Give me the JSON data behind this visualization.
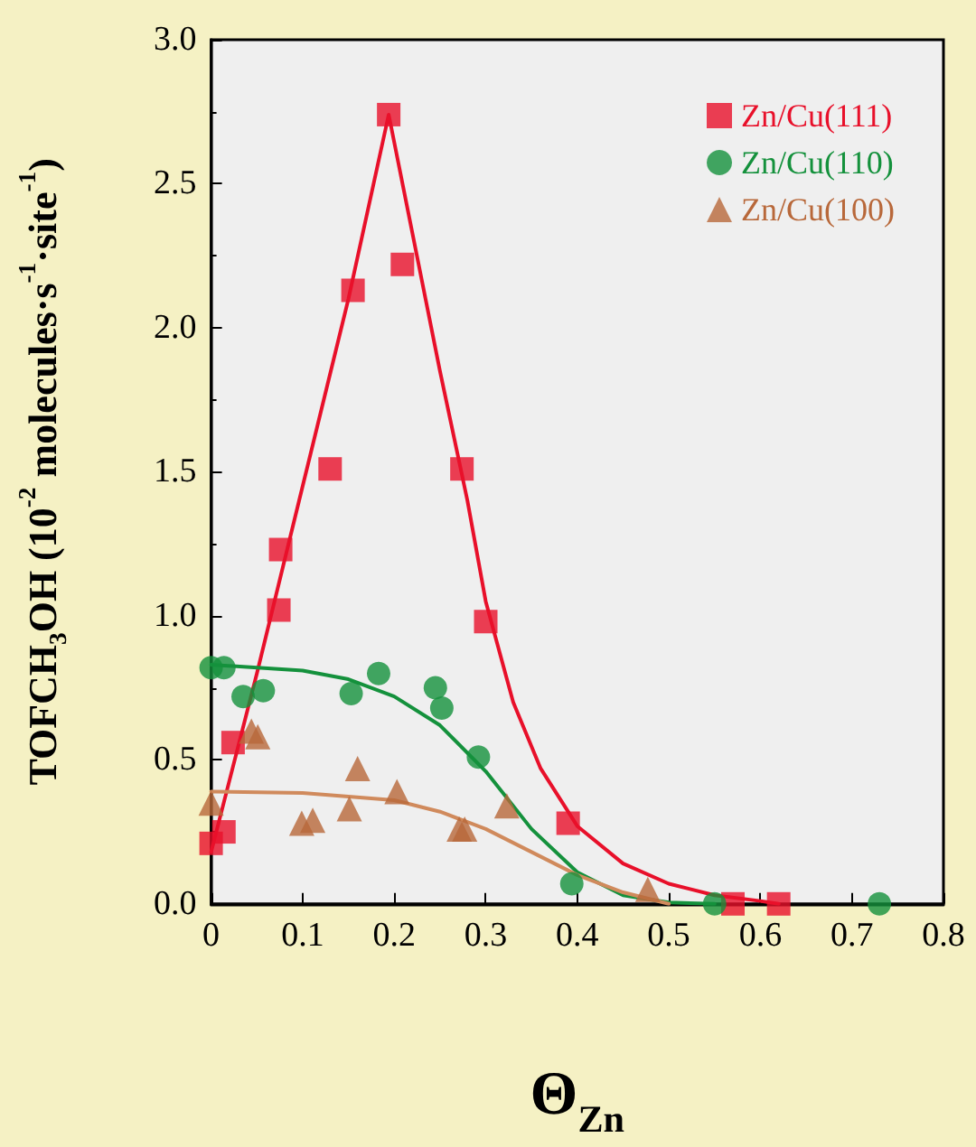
{
  "chart_data": {
    "type": "scatter",
    "xlabel": "Θ$_{Zn}$",
    "ylabel": "TOFCH$_{3}$OH (10$^{-2}$ molecules·s$^{-1}$·site$^{-1}$)",
    "xlim": [
      0,
      0.8
    ],
    "xticks": [
      0,
      0.1,
      0.2,
      0.3,
      0.4,
      0.5,
      0.6,
      0.7,
      0.8
    ],
    "ylim": [
      0,
      3
    ],
    "yticks": [
      {
        "value": 0,
        "label": "0.0"
      },
      {
        "value": 0.5,
        "label": "0.5"
      },
      {
        "value": 1,
        "label": "1.0"
      },
      {
        "value": 1.5,
        "label": "1.5"
      },
      {
        "value": 2,
        "label": "2.0"
      },
      {
        "value": 2.5,
        "label": "2.5"
      },
      {
        "value": 3,
        "label": "3.0"
      }
    ],
    "grid": false,
    "legend": "top right",
    "series": [
      {
        "name": "Zn/Cu(111)",
        "color": "#e8102a",
        "marker": "square",
        "x": [
          0,
          0.014,
          0.024,
          0.074,
          0.076,
          0.13,
          0.155,
          0.194,
          0.209,
          0.274,
          0.3,
          0.39,
          0.57,
          0.62
        ],
        "values": [
          0.21,
          0.25,
          0.56,
          1.02,
          1.23,
          1.51,
          2.13,
          2.74,
          2.22,
          1.51,
          0.98,
          0.28,
          0,
          0
        ]
      },
      {
        "name": "Zn/Cu(110)",
        "color": "#14913c",
        "marker": "circle",
        "x": [
          0,
          0.014,
          0.035,
          0.057,
          0.153,
          0.183,
          0.245,
          0.252,
          0.292,
          0.394,
          0.55,
          0.73
        ],
        "values": [
          0.82,
          0.82,
          0.72,
          0.74,
          0.73,
          0.8,
          0.75,
          0.68,
          0.51,
          0.07,
          0,
          0
        ]
      },
      {
        "name": "Zn/Cu(100)",
        "color": "#b8683a",
        "marker": "triangle",
        "x": [
          0,
          0.044,
          0.051,
          0.099,
          0.111,
          0.151,
          0.16,
          0.203,
          0.271,
          0.277,
          0.323,
          0.477
        ],
        "values": [
          0.35,
          0.6,
          0.58,
          0.28,
          0.29,
          0.33,
          0.47,
          0.39,
          0.26,
          0.26,
          0.34,
          0.05
        ]
      },
      {
        "type": "line",
        "color": "#e8102a",
        "marker": "none",
        "x": [
          0,
          0.05,
          0.1,
          0.15,
          0.194,
          0.25,
          0.28,
          0.3,
          0.33,
          0.36,
          0.4,
          0.45,
          0.5,
          0.55,
          0.6,
          0.62
        ],
        "values": [
          0.18,
          0.8,
          1.45,
          2.1,
          2.74,
          1.85,
          1.4,
          1.05,
          0.7,
          0.47,
          0.27,
          0.14,
          0.07,
          0.03,
          0.01,
          0
        ]
      },
      {
        "type": "line",
        "color": "#14913c",
        "marker": "none",
        "x": [
          0,
          0.1,
          0.15,
          0.2,
          0.25,
          0.3,
          0.35,
          0.4,
          0.45,
          0.5,
          0.55
        ],
        "values": [
          0.83,
          0.81,
          0.78,
          0.72,
          0.62,
          0.46,
          0.26,
          0.11,
          0.03,
          0.005,
          0
        ]
      },
      {
        "type": "line",
        "color": "#d08a5c",
        "marker": "none",
        "x": [
          0,
          0.1,
          0.2,
          0.25,
          0.3,
          0.35,
          0.4,
          0.45,
          0.5
        ],
        "values": [
          0.39,
          0.385,
          0.36,
          0.32,
          0.26,
          0.18,
          0.1,
          0.04,
          0
        ]
      }
    ]
  }
}
